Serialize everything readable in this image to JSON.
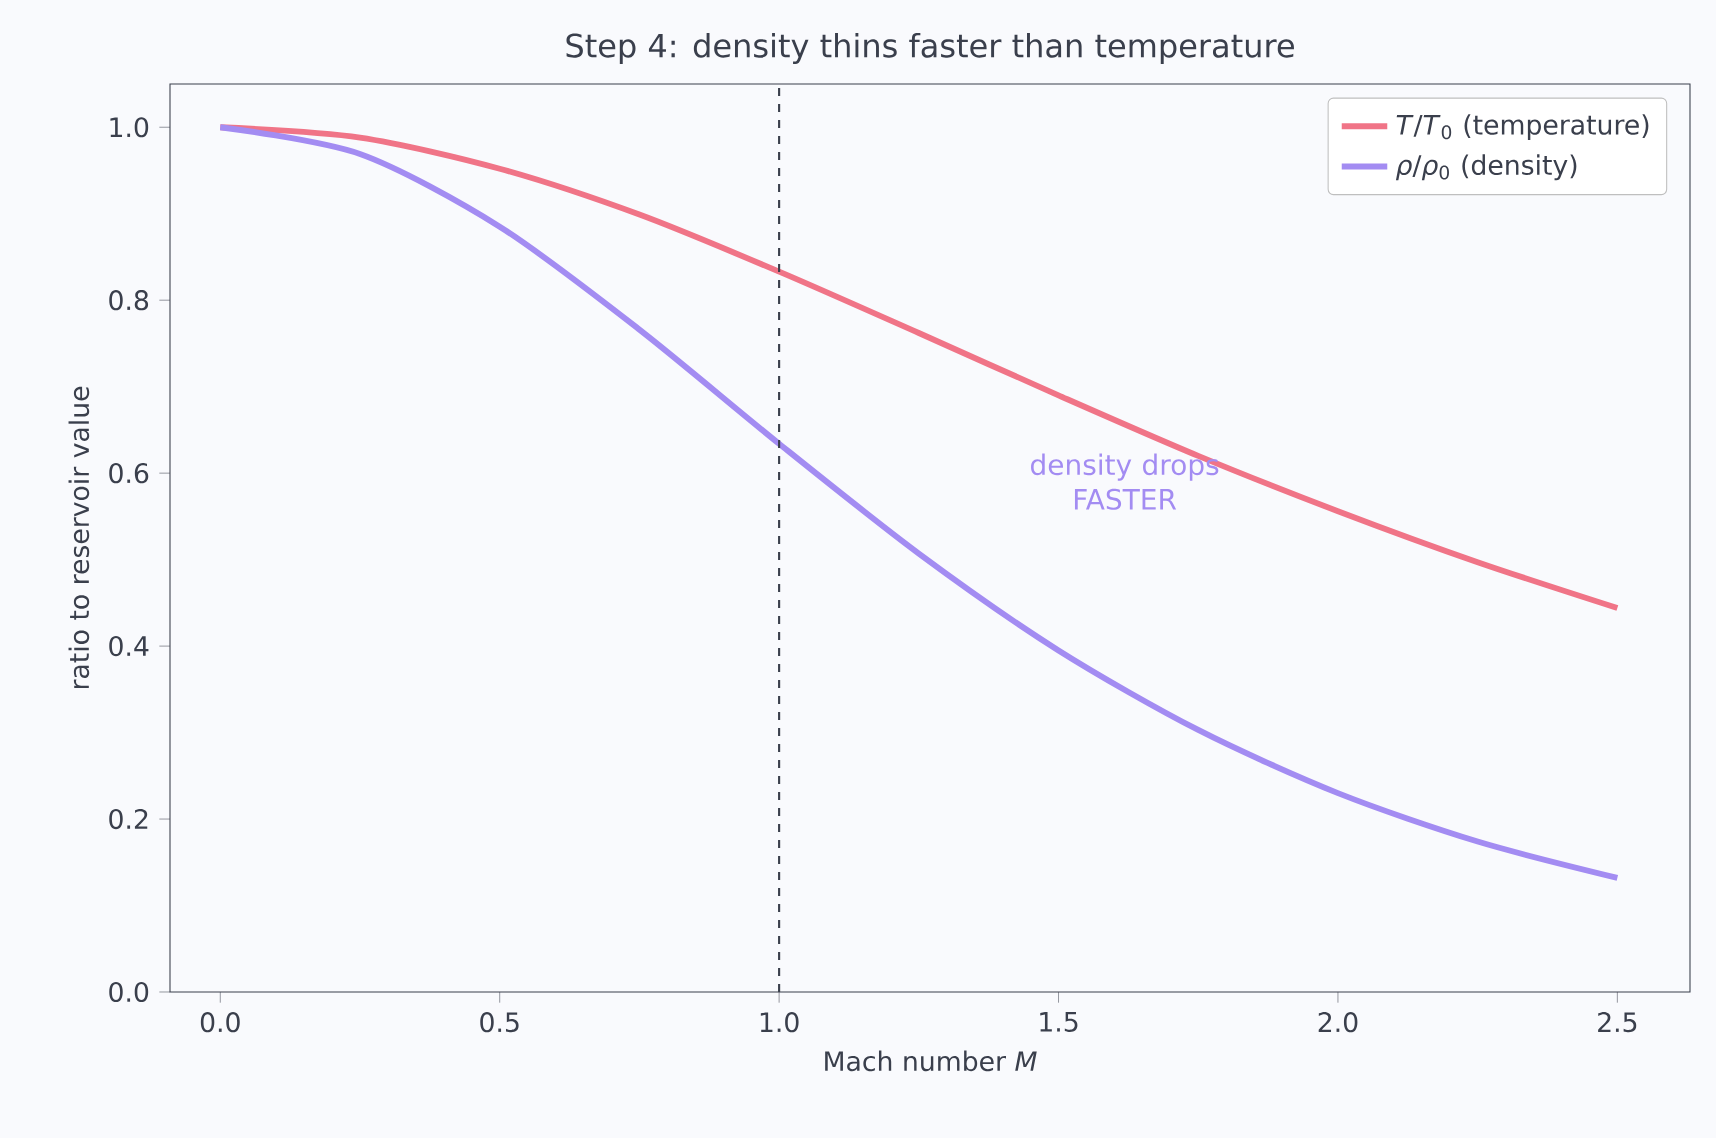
{
  "chart_data": {
    "type": "line",
    "title": "Step 4: density thins faster than temperature",
    "xlabel": "Mach number *M*",
    "ylabel": "ratio to reservoir value",
    "x": [
      0,
      0.25,
      0.5,
      0.75,
      1.0,
      1.25,
      1.5,
      1.75,
      2.0,
      2.25,
      2.5
    ],
    "series": [
      {
        "name": "*T*/*T*$_{0}$ (temperature)",
        "color": "#f07487",
        "values": [
          1.0,
          0.988,
          0.952,
          0.899,
          0.833,
          0.762,
          0.69,
          0.62,
          0.556,
          0.497,
          0.444
        ]
      },
      {
        "name": "*ρ*/*ρ*$_{0}$ (density)",
        "color": "#a38cf2",
        "values": [
          1.0,
          0.969,
          0.885,
          0.766,
          0.634,
          0.507,
          0.395,
          0.303,
          0.23,
          0.174,
          0.132
        ]
      }
    ],
    "xlim": [
      -0.09,
      2.63
    ],
    "ylim": [
      0,
      1.05
    ],
    "xticks": [
      {
        "value": 0,
        "label": "0.0"
      },
      {
        "value": 0.5,
        "label": "0.5"
      },
      {
        "value": 1.0,
        "label": "1.0"
      },
      {
        "value": 1.5,
        "label": "1.5"
      },
      {
        "value": 2.0,
        "label": "2.0"
      },
      {
        "value": 2.5,
        "label": "2.5"
      }
    ],
    "yticks": [
      {
        "value": 0,
        "label": "0.0"
      },
      {
        "value": 0.2,
        "label": "0.2"
      },
      {
        "value": 0.4,
        "label": "0.4"
      },
      {
        "value": 0.6,
        "label": "0.6"
      },
      {
        "value": 0.8,
        "label": "0.8"
      },
      {
        "value": 1.0,
        "label": "1.0"
      }
    ],
    "ref_lines": [
      {
        "axis": "x",
        "value": 1.0,
        "color": "#3a3f4c",
        "line_style": "dashed"
      }
    ],
    "annotations": [
      "density drops FASTER"
    ],
    "legend": "top right",
    "marker": "none",
    "line_style": "solid",
    "grid": false
  }
}
